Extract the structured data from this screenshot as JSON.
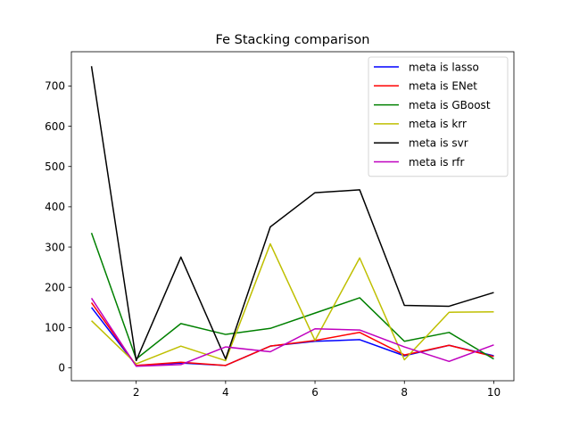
{
  "chart_data": {
    "type": "line",
    "title": "Fe Stacking comparison",
    "xlabel": "",
    "ylabel": "",
    "xlim": [
      0.55,
      10.45
    ],
    "ylim": [
      -32,
      785
    ],
    "xticks": [
      2,
      4,
      6,
      8,
      10
    ],
    "yticks": [
      0,
      100,
      200,
      300,
      400,
      500,
      600,
      700
    ],
    "grid": false,
    "legend_position": "top-right",
    "x": [
      1,
      2,
      3,
      4,
      5,
      6,
      7,
      8,
      9,
      10
    ],
    "series": [
      {
        "name": "meta is lasso",
        "color": "#0000ff",
        "values": [
          150,
          6,
          12,
          6,
          54,
          66,
          70,
          30,
          56,
          30
        ]
      },
      {
        "name": "meta is ENet",
        "color": "#ff0000",
        "values": [
          162,
          6,
          14,
          6,
          54,
          68,
          88,
          32,
          56,
          28
        ]
      },
      {
        "name": "meta is GBoost",
        "color": "#008000",
        "values": [
          335,
          22,
          110,
          83,
          98,
          136,
          174,
          66,
          88,
          22
        ]
      },
      {
        "name": "meta is krr",
        "color": "#bfbf00",
        "values": [
          117,
          10,
          54,
          18,
          308,
          68,
          273,
          20,
          138,
          139
        ]
      },
      {
        "name": "meta is svr",
        "color": "#000000",
        "values": [
          749,
          18,
          275,
          22,
          350,
          435,
          442,
          155,
          153,
          187
        ]
      },
      {
        "name": "meta is rfr",
        "color": "#bf00bf",
        "values": [
          173,
          4,
          8,
          52,
          40,
          97,
          94,
          52,
          16,
          57
        ]
      }
    ]
  }
}
